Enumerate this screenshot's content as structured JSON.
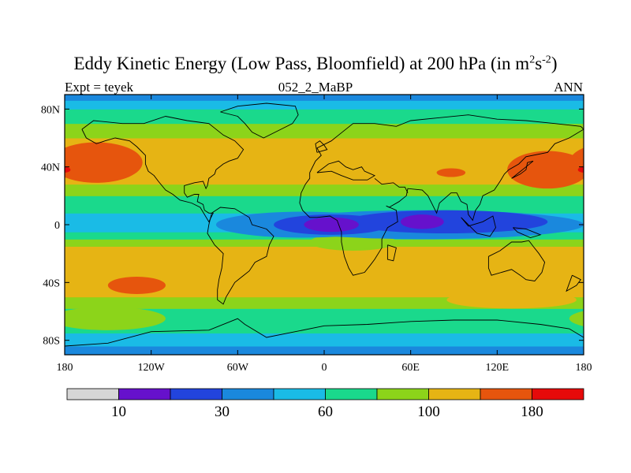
{
  "chart_data": {
    "type": "heatmap",
    "title": "Eddy Kinetic Energy (Low Pass, Bloomfield) at 200 hPa (in m",
    "title_unit_exp1": "2",
    "title_mid": "s",
    "title_unit_exp2": "-2",
    "title_end": ")",
    "left_label": "Expt = teyek",
    "center_label": "052_2_MaBP",
    "right_label": "ANN",
    "x_ticks": [
      {
        "value": -180,
        "label": "180"
      },
      {
        "value": -120,
        "label": "120W"
      },
      {
        "value": -60,
        "label": "60W"
      },
      {
        "value": 0,
        "label": "0"
      },
      {
        "value": 60,
        "label": "60E"
      },
      {
        "value": 120,
        "label": "120E"
      },
      {
        "value": 180,
        "label": "180"
      }
    ],
    "y_ticks": [
      {
        "value": 80,
        "label": "80N"
      },
      {
        "value": 40,
        "label": "40N"
      },
      {
        "value": 0,
        "label": "0"
      },
      {
        "value": -40,
        "label": "40S"
      },
      {
        "value": -80,
        "label": "80S"
      }
    ],
    "xlim": [
      -180,
      180
    ],
    "ylim": [
      -90,
      90
    ],
    "levels": [
      10,
      20,
      30,
      40,
      60,
      80,
      100,
      140,
      180
    ],
    "colorbar_labels": [
      {
        "level_index": 0,
        "label": "10"
      },
      {
        "level_index": 2,
        "label": "30"
      },
      {
        "level_index": 4,
        "label": "60"
      },
      {
        "level_index": 6,
        "label": "100"
      },
      {
        "level_index": 8,
        "label": "180"
      }
    ],
    "colors": [
      "#d6d6d6",
      "#6611cc",
      "#2244dd",
      "#1a88dd",
      "#1abbe6",
      "#1ad98c",
      "#8cd41a",
      "#e6b414",
      "#e6550d",
      "#e60a0a"
    ],
    "bands": [
      {
        "lat": -90,
        "color_index": 3
      },
      {
        "lat": -84,
        "color_index": 4
      },
      {
        "lat": -75,
        "color_index": 5
      },
      {
        "lat": -58,
        "color_index": 6
      },
      {
        "lat": -50,
        "color_index": 7
      },
      {
        "lat": -15,
        "color_index": 6
      },
      {
        "lat": -10,
        "color_index": 5
      },
      {
        "lat": -5,
        "color_index": 4
      },
      {
        "lat": 8,
        "color_index": 5
      },
      {
        "lat": 20,
        "color_index": 6
      },
      {
        "lat": 28,
        "color_index": 7
      },
      {
        "lat": 60,
        "color_index": 6
      },
      {
        "lat": 70,
        "color_index": 5
      },
      {
        "lat": 80,
        "color_index": 4
      },
      {
        "lat": 86,
        "color_index": 3
      }
    ],
    "blobs": [
      {
        "lon": -158,
        "lat": 43,
        "rlon": 32,
        "rlat": 14,
        "color_index": 8
      },
      {
        "lon": 155,
        "lat": 38,
        "rlon": 28,
        "rlat": 13,
        "color_index": 8
      },
      {
        "lon": 88,
        "lat": 36,
        "rlon": 10,
        "rlat": 3,
        "color_index": 8
      },
      {
        "lon": -180,
        "lat": 38,
        "rlon": 4,
        "rlat": 2,
        "color_index": 9
      },
      {
        "lon": -130,
        "lat": -42,
        "rlon": 20,
        "rlat": 6,
        "color_index": 8
      },
      {
        "lon": 130,
        "lat": -52,
        "rlon": 45,
        "rlat": 6,
        "color_index": 7
      },
      {
        "lon": -150,
        "lat": -65,
        "rlon": 40,
        "rlat": 8,
        "color_index": 6
      },
      {
        "lon": 20,
        "lat": -12,
        "rlon": 30,
        "rlat": 6,
        "color_index": 6
      },
      {
        "lon": 70,
        "lat": 0,
        "rlon": 110,
        "rlat": 10,
        "color_index": 3
      },
      {
        "lon": -15,
        "lat": 0,
        "rlon": 60,
        "rlat": 9,
        "color_index": 3
      },
      {
        "lon": 5,
        "lat": 0,
        "rlon": 40,
        "rlat": 7,
        "color_index": 2
      },
      {
        "lon": 85,
        "lat": 2,
        "rlon": 70,
        "rlat": 8,
        "color_index": 2
      },
      {
        "lon": 5,
        "lat": 0,
        "rlon": 19,
        "rlat": 5,
        "color_index": 1
      },
      {
        "lon": 68,
        "lat": 2,
        "rlon": 15,
        "rlat": 5,
        "color_index": 1
      }
    ],
    "coastlines": [
      {
        "name": "north-america",
        "points": [
          [
            -168,
            66
          ],
          [
            -160,
            72
          ],
          [
            -140,
            70
          ],
          [
            -125,
            70
          ],
          [
            -110,
            75
          ],
          [
            -95,
            72
          ],
          [
            -80,
            70
          ],
          [
            -70,
            62
          ],
          [
            -62,
            58
          ],
          [
            -56,
            52
          ],
          [
            -60,
            46
          ],
          [
            -66,
            44
          ],
          [
            -70,
            42
          ],
          [
            -75,
            38
          ],
          [
            -76,
            35
          ],
          [
            -80,
            32
          ],
          [
            -81,
            27
          ],
          [
            -82,
            25
          ],
          [
            -84,
            30
          ],
          [
            -90,
            29
          ],
          [
            -97,
            27
          ],
          [
            -97,
            22
          ],
          [
            -95,
            19
          ],
          [
            -90,
            21
          ],
          [
            -87,
            21
          ],
          [
            -88,
            16
          ],
          [
            -84,
            14
          ],
          [
            -83,
            10
          ],
          [
            -80,
            8
          ],
          [
            -77,
            8
          ],
          [
            -80,
            2
          ],
          [
            -86,
            12
          ],
          [
            -92,
            15
          ],
          [
            -100,
            17
          ],
          [
            -105,
            21
          ],
          [
            -110,
            24
          ],
          [
            -115,
            30
          ],
          [
            -118,
            34
          ],
          [
            -122,
            37
          ],
          [
            -124,
            42
          ],
          [
            -124,
            48
          ],
          [
            -130,
            54
          ],
          [
            -135,
            58
          ],
          [
            -145,
            60
          ],
          [
            -152,
            58
          ],
          [
            -158,
            56
          ],
          [
            -165,
            60
          ],
          [
            -168,
            66
          ]
        ]
      },
      {
        "name": "greenland",
        "points": [
          [
            -72,
            78
          ],
          [
            -60,
            82
          ],
          [
            -40,
            84
          ],
          [
            -20,
            82
          ],
          [
            -18,
            76
          ],
          [
            -22,
            70
          ],
          [
            -30,
            66
          ],
          [
            -42,
            60
          ],
          [
            -50,
            64
          ],
          [
            -55,
            70
          ],
          [
            -60,
            75
          ],
          [
            -72,
            78
          ]
        ]
      },
      {
        "name": "south-america",
        "points": [
          [
            -78,
            8
          ],
          [
            -72,
            12
          ],
          [
            -62,
            11
          ],
          [
            -52,
            5
          ],
          [
            -50,
            0
          ],
          [
            -40,
            -3
          ],
          [
            -35,
            -8
          ],
          [
            -38,
            -14
          ],
          [
            -40,
            -22
          ],
          [
            -48,
            -26
          ],
          [
            -52,
            -32
          ],
          [
            -57,
            -36
          ],
          [
            -62,
            -40
          ],
          [
            -65,
            -45
          ],
          [
            -68,
            -50
          ],
          [
            -70,
            -55
          ],
          [
            -74,
            -52
          ],
          [
            -74,
            -45
          ],
          [
            -73,
            -38
          ],
          [
            -71,
            -30
          ],
          [
            -70,
            -20
          ],
          [
            -76,
            -14
          ],
          [
            -81,
            -6
          ],
          [
            -80,
            0
          ],
          [
            -78,
            8
          ]
        ]
      },
      {
        "name": "eurasia-africa",
        "points": [
          [
            -10,
            36
          ],
          [
            -6,
            44
          ],
          [
            -2,
            48
          ],
          [
            -5,
            53
          ],
          [
            5,
            58
          ],
          [
            10,
            62
          ],
          [
            20,
            70
          ],
          [
            35,
            70
          ],
          [
            50,
            68
          ],
          [
            60,
            72
          ],
          [
            80,
            74
          ],
          [
            100,
            76
          ],
          [
            120,
            73
          ],
          [
            140,
            72
          ],
          [
            160,
            70
          ],
          [
            178,
            68
          ],
          [
            180,
            66
          ],
          [
            170,
            60
          ],
          [
            160,
            56
          ],
          [
            155,
            50
          ],
          [
            140,
            47
          ],
          [
            135,
            42
          ],
          [
            128,
            38
          ],
          [
            125,
            35
          ],
          [
            122,
            30
          ],
          [
            118,
            24
          ],
          [
            110,
            20
          ],
          [
            108,
            14
          ],
          [
            105,
            10
          ],
          [
            103,
            3
          ],
          [
            100,
            7
          ],
          [
            99,
            14
          ],
          [
            95,
            16
          ],
          [
            92,
            22
          ],
          [
            88,
            22
          ],
          [
            80,
            15
          ],
          [
            78,
            8
          ],
          [
            72,
            20
          ],
          [
            68,
            24
          ],
          [
            58,
            25
          ],
          [
            57,
            20
          ],
          [
            52,
            16
          ],
          [
            45,
            12
          ],
          [
            43,
            13
          ],
          [
            50,
            10
          ],
          [
            51,
            2
          ],
          [
            44,
            -2
          ],
          [
            40,
            -10
          ],
          [
            40,
            -16
          ],
          [
            35,
            -24
          ],
          [
            32,
            -28
          ],
          [
            28,
            -33
          ],
          [
            20,
            -35
          ],
          [
            17,
            -30
          ],
          [
            14,
            -22
          ],
          [
            12,
            -12
          ],
          [
            12,
            -5
          ],
          [
            9,
            3
          ],
          [
            4,
            6
          ],
          [
            -5,
            5
          ],
          [
            -10,
            5
          ],
          [
            -15,
            10
          ],
          [
            -17,
            15
          ],
          [
            -16,
            22
          ],
          [
            -13,
            28
          ],
          [
            -10,
            32
          ],
          [
            -10,
            36
          ]
        ]
      },
      {
        "name": "arabia-gulf",
        "points": [
          [
            35,
            32
          ],
          [
            40,
            28
          ],
          [
            48,
            29
          ],
          [
            52,
            26
          ],
          [
            56,
            26
          ],
          [
            58,
            22
          ]
        ]
      },
      {
        "name": "mediterranean",
        "points": [
          [
            -5,
            36
          ],
          [
            5,
            37
          ],
          [
            12,
            34
          ],
          [
            20,
            31
          ],
          [
            30,
            31
          ],
          [
            35,
            34
          ],
          [
            28,
            37
          ],
          [
            26,
            40
          ],
          [
            20,
            38
          ],
          [
            15,
            40
          ],
          [
            10,
            44
          ],
          [
            3,
            42
          ],
          [
            -5,
            36
          ]
        ]
      },
      {
        "name": "madagascar",
        "points": [
          [
            44,
            -14
          ],
          [
            50,
            -16
          ],
          [
            48,
            -25
          ],
          [
            44,
            -24
          ],
          [
            44,
            -14
          ]
        ]
      },
      {
        "name": "australia",
        "points": [
          [
            114,
            -22
          ],
          [
            122,
            -18
          ],
          [
            130,
            -12
          ],
          [
            137,
            -12
          ],
          [
            142,
            -11
          ],
          [
            145,
            -15
          ],
          [
            149,
            -20
          ],
          [
            153,
            -26
          ],
          [
            151,
            -33
          ],
          [
            146,
            -39
          ],
          [
            140,
            -38
          ],
          [
            136,
            -35
          ],
          [
            130,
            -31
          ],
          [
            116,
            -35
          ],
          [
            114,
            -30
          ],
          [
            114,
            -22
          ]
        ]
      },
      {
        "name": "new-guinea",
        "points": [
          [
            131,
            -2
          ],
          [
            140,
            -3
          ],
          [
            150,
            -7
          ],
          [
            143,
            -9
          ],
          [
            134,
            -5
          ],
          [
            131,
            -2
          ]
        ]
      },
      {
        "name": "antarctica",
        "points": [
          [
            -180,
            -84
          ],
          [
            -150,
            -82
          ],
          [
            -120,
            -74
          ],
          [
            -80,
            -73
          ],
          [
            -60,
            -65
          ],
          [
            -55,
            -69
          ],
          [
            -40,
            -78
          ],
          [
            -20,
            -74
          ],
          [
            0,
            -70
          ],
          [
            30,
            -69
          ],
          [
            60,
            -67
          ],
          [
            90,
            -66
          ],
          [
            120,
            -66
          ],
          [
            150,
            -69
          ],
          [
            170,
            -72
          ],
          [
            180,
            -78
          ]
        ]
      },
      {
        "name": "new-zealand",
        "points": [
          [
            172,
            -35
          ],
          [
            178,
            -38
          ],
          [
            175,
            -42
          ],
          [
            168,
            -46
          ],
          [
            172,
            -35
          ]
        ]
      },
      {
        "name": "japan",
        "points": [
          [
            130,
            32
          ],
          [
            136,
            35
          ],
          [
            140,
            38
          ],
          [
            141,
            43
          ],
          [
            145,
            44
          ],
          [
            140,
            40
          ],
          [
            135,
            36
          ],
          [
            130,
            32
          ]
        ]
      },
      {
        "name": "uk",
        "points": [
          [
            -5,
            50
          ],
          [
            2,
            52
          ],
          [
            0,
            55
          ],
          [
            -3,
            58
          ],
          [
            -6,
            56
          ],
          [
            -5,
            50
          ]
        ]
      },
      {
        "name": "indonesia",
        "points": [
          [
            95,
            5
          ],
          [
            106,
            -6
          ],
          [
            115,
            -8
          ],
          [
            119,
            -2
          ],
          [
            117,
            6
          ],
          [
            110,
            2
          ],
          [
            100,
            -1
          ],
          [
            95,
            5
          ]
        ]
      }
    ]
  }
}
